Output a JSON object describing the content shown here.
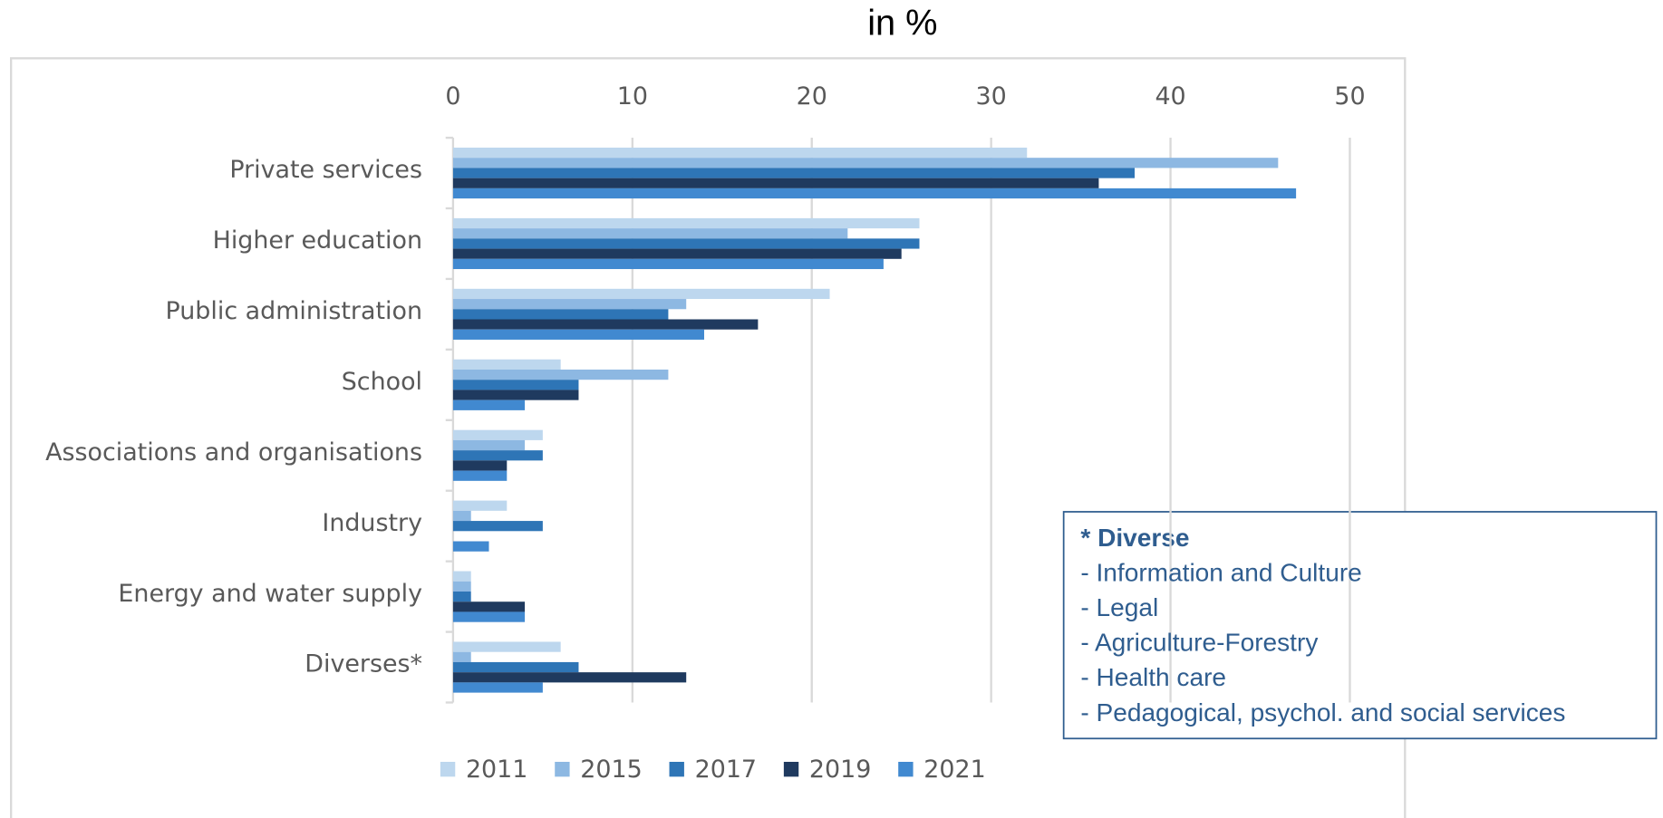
{
  "chart_data": {
    "type": "bar",
    "orientation": "horizontal",
    "title": "in %",
    "categories": [
      "Private services",
      "Higher education",
      "Public administration",
      "School",
      "Associations and organisations",
      "Industry",
      "Energy and water supply",
      "Diverses*"
    ],
    "series": [
      {
        "name": "2011",
        "color": "#bdd7ee",
        "values": [
          32,
          26,
          21,
          6,
          5,
          3,
          1,
          6
        ]
      },
      {
        "name": "2015",
        "color": "#8db8e2",
        "values": [
          46,
          22,
          13,
          12,
          4,
          1,
          1,
          1
        ]
      },
      {
        "name": "2017",
        "color": "#2e75b6",
        "values": [
          38,
          26,
          12,
          7,
          5,
          5,
          1,
          7
        ]
      },
      {
        "name": "2019",
        "color": "#1f3a5f",
        "values": [
          36,
          25,
          17,
          7,
          3,
          0,
          4,
          13
        ]
      },
      {
        "name": "2021",
        "color": "#4189d0",
        "values": [
          47,
          24,
          14,
          4,
          3,
          2,
          4,
          5
        ]
      }
    ],
    "xlim": [
      0,
      50
    ],
    "xticks": [
      0,
      10,
      20,
      30,
      40,
      50
    ],
    "grid": true,
    "legend": "bottom",
    "note": {
      "title": "* Diverse",
      "lines": [
        "- Information and Culture",
        "- Legal",
        "- Agriculture-Forestry",
        "- Health care",
        "- Pedagogical, psychol. and social services"
      ]
    }
  }
}
